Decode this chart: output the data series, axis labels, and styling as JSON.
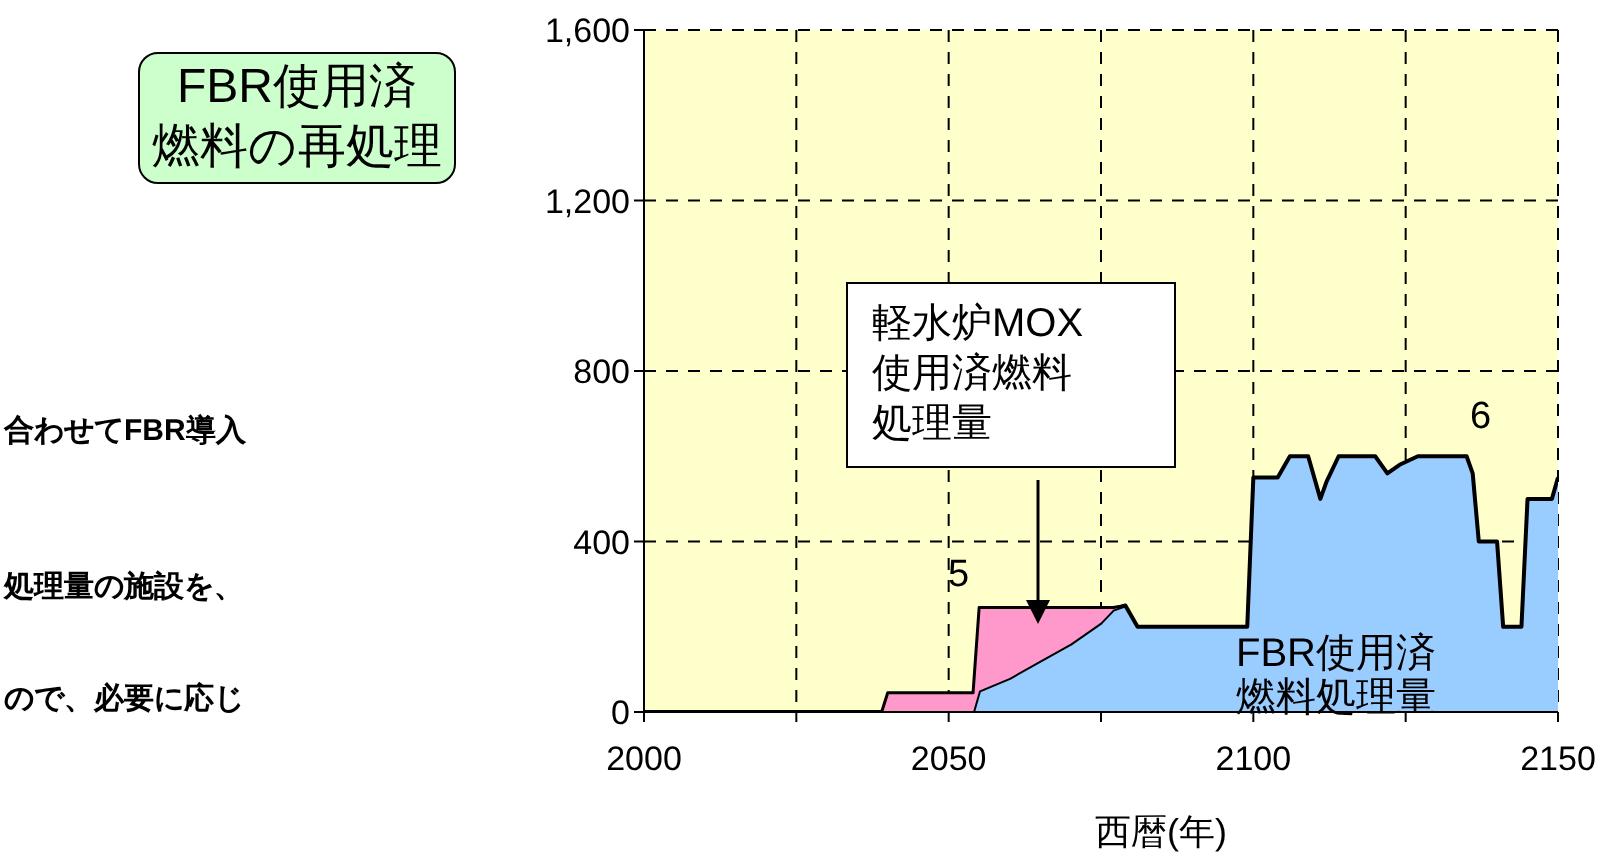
{
  "chart_data": {
    "type": "area",
    "title": "FBR使用済燃料の再処理",
    "xlabel": "西暦(年)",
    "x": [
      2000,
      2039,
      2040,
      2054,
      2055,
      2060,
      2065,
      2070,
      2075,
      2077,
      2079,
      2081,
      2099,
      2100,
      2104,
      2106,
      2109,
      2111,
      2112,
      2114,
      2120,
      2122,
      2124,
      2127,
      2135,
      2136,
      2137,
      2140,
      2141,
      2144,
      2145,
      2149,
      2150
    ],
    "series": [
      {
        "name": "FBR使用済燃料処理量",
        "color": "#99ccff",
        "values": [
          0,
          0,
          0,
          0,
          50,
          80,
          120,
          160,
          210,
          240,
          250,
          200,
          200,
          550,
          550,
          600,
          600,
          500,
          540,
          600,
          600,
          560,
          580,
          600,
          600,
          560,
          400,
          400,
          200,
          200,
          500,
          500,
          550
        ]
      },
      {
        "name": "軽水炉MOX使用済燃料処理量",
        "color": "#ff99cc",
        "values": [
          null,
          0,
          45,
          45,
          195,
          165,
          125,
          85,
          35,
          5,
          0,
          null,
          null,
          null,
          null,
          null,
          null,
          null,
          null,
          null,
          null,
          null,
          null,
          null,
          null,
          null,
          null,
          null,
          null,
          null,
          null,
          null,
          null
        ]
      }
    ],
    "stacked": true,
    "xlim": [
      2000,
      2150
    ],
    "xticks": [
      2000,
      {
        "value": 2025,
        "label": null
      },
      2050,
      {
        "value": 2075,
        "label": null
      },
      2100,
      {
        "value": 2125,
        "label": null
      },
      2150
    ],
    "ylim": [
      0,
      1600
    ],
    "yticks": [
      0,
      400,
      800,
      {
        "value": 1200,
        "label": "1,200"
      },
      {
        "value": 1600,
        "label": "1,600"
      }
    ],
    "grid": true,
    "annotations": [
      "合わせてFBR導入",
      "処理量の施設を、",
      "ので、必要に応じ",
      "5",
      "6"
    ]
  }
}
